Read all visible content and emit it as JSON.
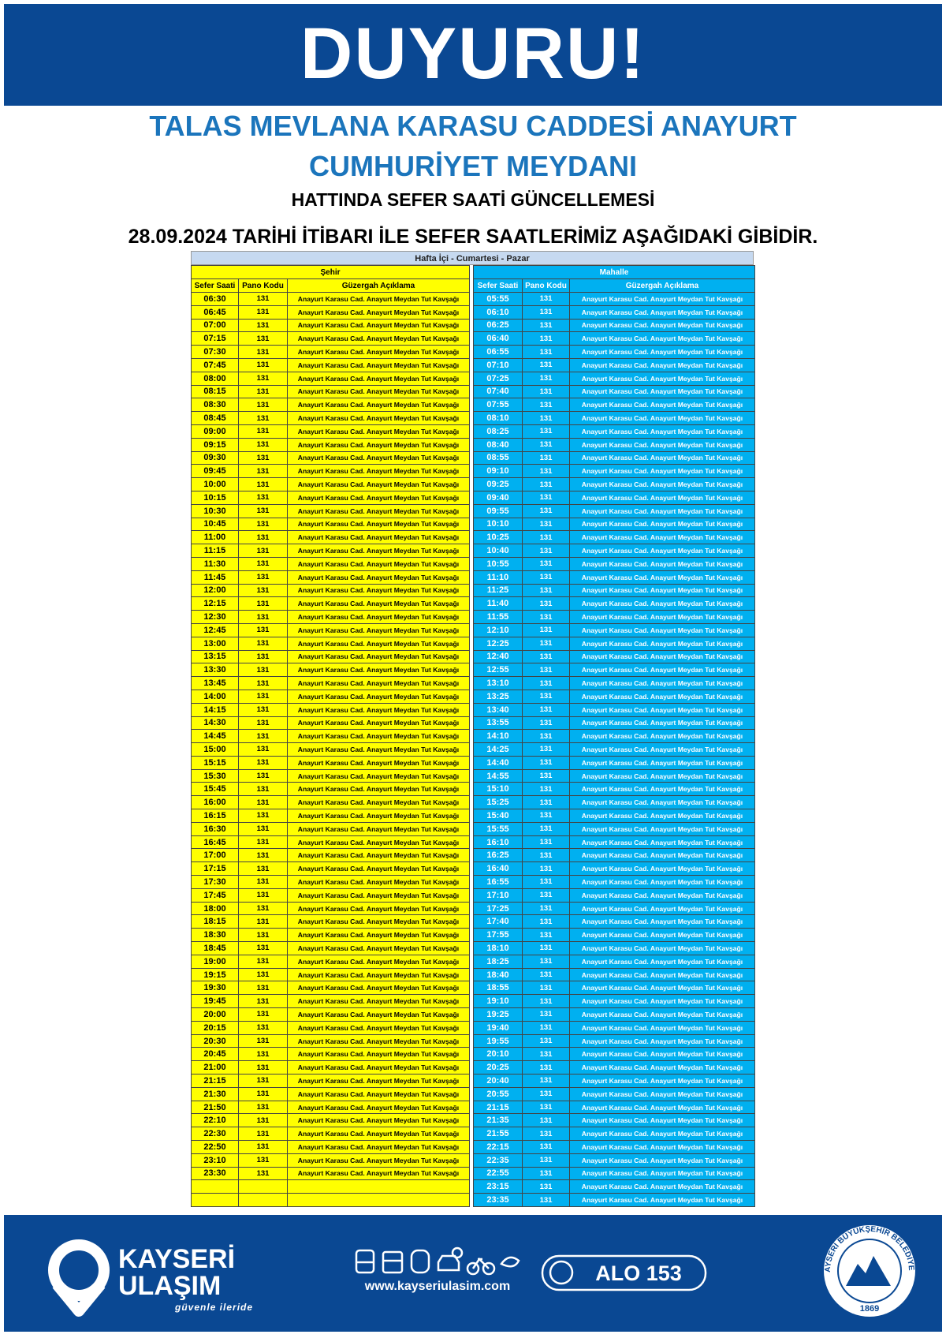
{
  "header": {
    "title": "DUYURU!",
    "subtitle_lines": [
      "TALAS MEVLANA KARASU CADDESİ ANAYURT",
      "CUMHURİYET MEYDANI"
    ],
    "line3": "HATTINDA SEFER SAATİ GÜNCELLEMESİ",
    "notice": "28.09.2024 TARİHİ İTİBARI İLE SEFER SAATLERİMİZ AŞAĞIDAKİ GİBİDİR."
  },
  "table": {
    "caption": "Hafta İçi - Cumartesi - Pazar",
    "sections": [
      {
        "name": "Şehir",
        "columns": [
          "Sefer Saati",
          "Pano Kodu",
          "Güzergah Açıklama"
        ],
        "pano_kodu": "131",
        "route": "Anayurt Karasu Cad. Anayurt Meydan Tut Kavşağı",
        "times": [
          "06:30",
          "06:45",
          "07:00",
          "07:15",
          "07:30",
          "07:45",
          "08:00",
          "08:15",
          "08:30",
          "08:45",
          "09:00",
          "09:15",
          "09:30",
          "09:45",
          "10:00",
          "10:15",
          "10:30",
          "10:45",
          "11:00",
          "11:15",
          "11:30",
          "11:45",
          "12:00",
          "12:15",
          "12:30",
          "12:45",
          "13:00",
          "13:15",
          "13:30",
          "13:45",
          "14:00",
          "14:15",
          "14:30",
          "14:45",
          "15:00",
          "15:15",
          "15:30",
          "15:45",
          "16:00",
          "16:15",
          "16:30",
          "16:45",
          "17:00",
          "17:15",
          "17:30",
          "17:45",
          "18:00",
          "18:15",
          "18:30",
          "18:45",
          "19:00",
          "19:15",
          "19:30",
          "19:45",
          "20:00",
          "20:15",
          "20:30",
          "20:45",
          "21:00",
          "21:15",
          "21:30",
          "21:50",
          "22:10",
          "22:30",
          "22:50",
          "23:10",
          "23:30"
        ]
      },
      {
        "name": "Mahalle",
        "columns": [
          "Sefer Saati",
          "Pano Kodu",
          "Güzergah Açıklama"
        ],
        "pano_kodu": "131",
        "route": "Anayurt Karasu Cad. Anayurt Meydan Tut Kavşağı",
        "times": [
          "05:55",
          "06:10",
          "06:25",
          "06:40",
          "06:55",
          "07:10",
          "07:25",
          "07:40",
          "07:55",
          "08:10",
          "08:25",
          "08:40",
          "08:55",
          "09:10",
          "09:25",
          "09:40",
          "09:55",
          "10:10",
          "10:25",
          "10:40",
          "10:55",
          "11:10",
          "11:25",
          "11:40",
          "11:55",
          "12:10",
          "12:25",
          "12:40",
          "12:55",
          "13:10",
          "13:25",
          "13:40",
          "13:55",
          "14:10",
          "14:25",
          "14:40",
          "14:55",
          "15:10",
          "15:25",
          "15:40",
          "15:55",
          "16:10",
          "16:25",
          "16:40",
          "16:55",
          "17:10",
          "17:25",
          "17:40",
          "17:55",
          "18:10",
          "18:25",
          "18:40",
          "18:55",
          "19:10",
          "19:25",
          "19:40",
          "19:55",
          "20:10",
          "20:25",
          "20:40",
          "20:55",
          "21:15",
          "21:35",
          "21:55",
          "22:15",
          "22:35",
          "22:55",
          "23:15",
          "23:35"
        ]
      }
    ]
  },
  "footer": {
    "brand_line1": "KAYSERİ",
    "brand_line2": "ULAŞIM",
    "slogan": "güvenle ileride",
    "website": "www.kayseriulasim.com",
    "phone": "ALO 153",
    "emblem_text": "KAYSERİ BÜYÜKŞEHİR BELEDİYESİ",
    "emblem_year": "1869"
  }
}
